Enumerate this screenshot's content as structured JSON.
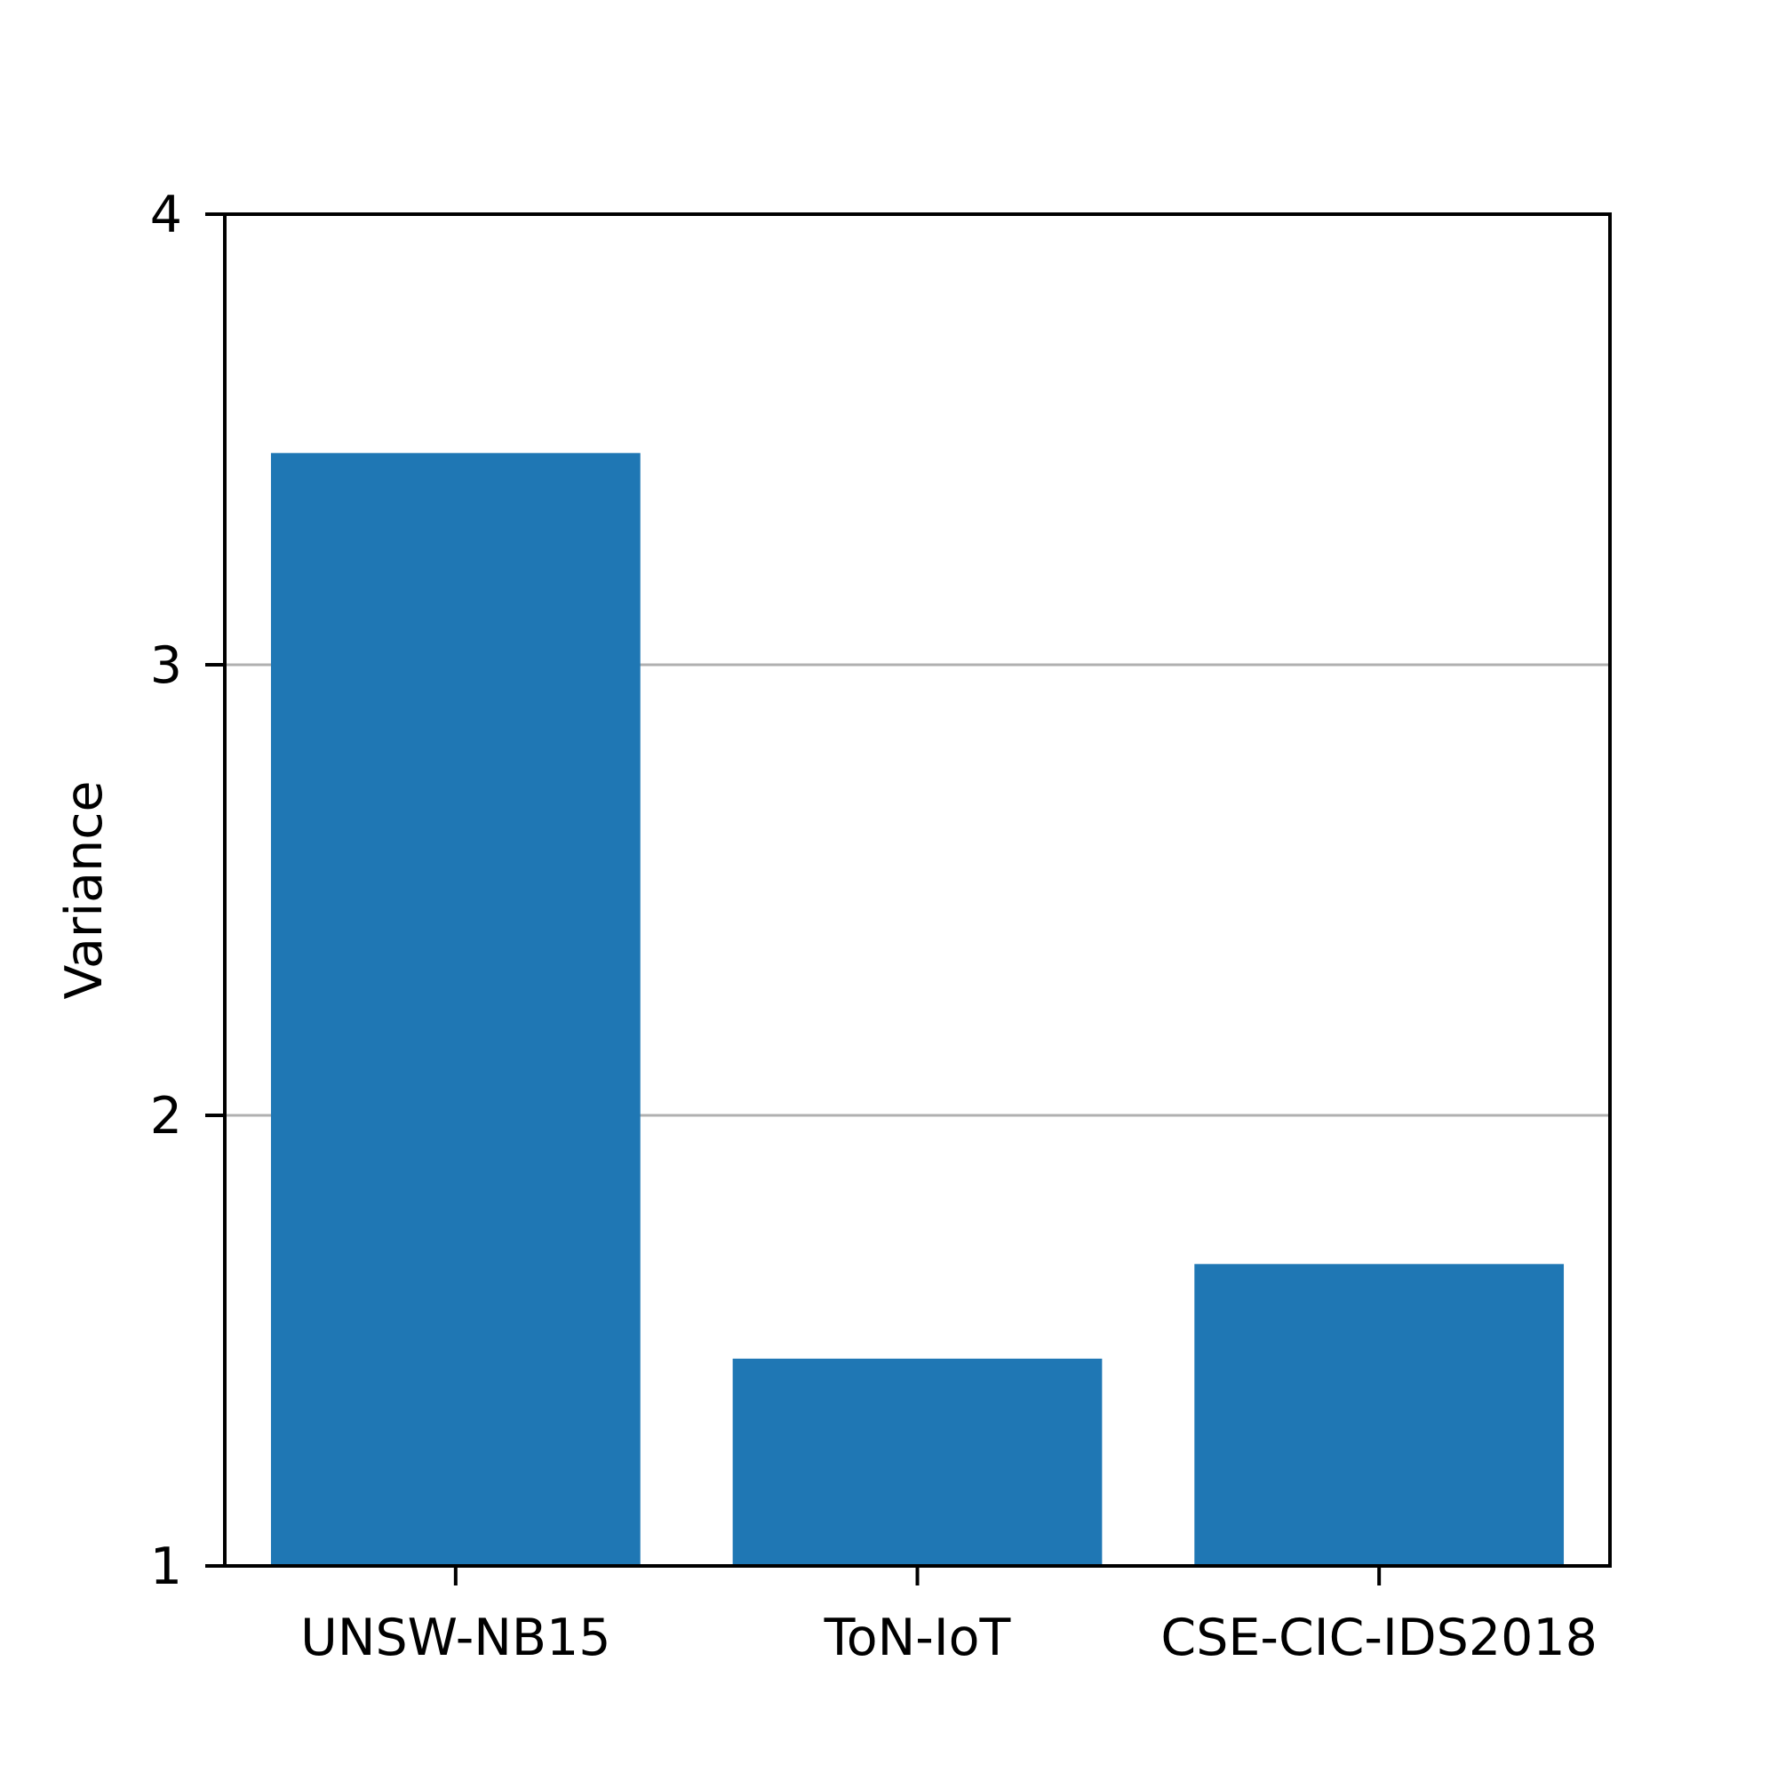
{
  "chart_data": {
    "type": "bar",
    "categories": [
      "UNSW-NB15",
      "ToN-IoT",
      "CSE-CIC-IDS2018"
    ],
    "values": [
      3.47,
      1.46,
      1.67
    ],
    "title": "",
    "xlabel": "",
    "ylabel": "Variance",
    "ylim": [
      1,
      4
    ],
    "yticks": [
      "1",
      "2",
      "3",
      "4"
    ],
    "ytick_values": [
      1,
      2,
      3,
      4
    ],
    "grid": "horizontal",
    "colors": {
      "bar": "#1f77b4",
      "grid": "#b0b0b0",
      "axis": "#000000"
    }
  }
}
